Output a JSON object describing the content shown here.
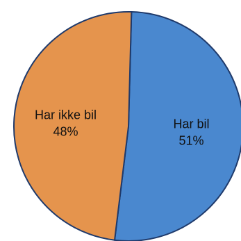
{
  "chart_data": {
    "type": "pie",
    "title": "",
    "slices": [
      {
        "label": "Har bil",
        "percent_label": "51%",
        "value": 51,
        "color": "#4a88cf"
      },
      {
        "label": "Har ikke bil",
        "percent_label": "48%",
        "value": 48,
        "color": "#e5944d"
      }
    ],
    "legend": "none"
  }
}
